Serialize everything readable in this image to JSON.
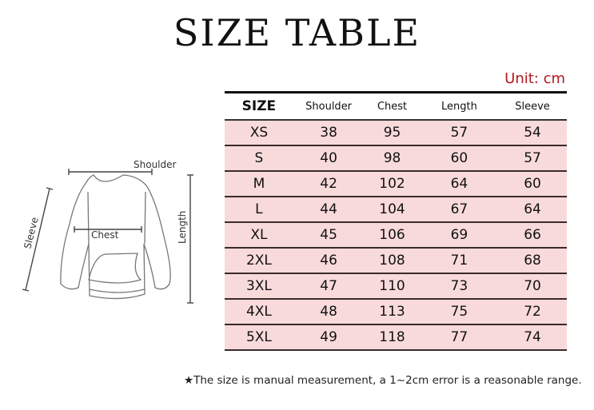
{
  "title": "SIZE TABLE",
  "unit": "Unit: cm",
  "table": {
    "headers": [
      "SIZE",
      "Shoulder",
      "Chest",
      "Length",
      "Sleeve"
    ],
    "rows": [
      [
        "XS",
        "38",
        "95",
        "57",
        "54"
      ],
      [
        "S",
        "40",
        "98",
        "60",
        "57"
      ],
      [
        "M",
        "42",
        "102",
        "64",
        "60"
      ],
      [
        "L",
        "44",
        "104",
        "67",
        "64"
      ],
      [
        "XL",
        "45",
        "106",
        "69",
        "66"
      ],
      [
        "2XL",
        "46",
        "108",
        "71",
        "68"
      ],
      [
        "3XL",
        "47",
        "110",
        "73",
        "70"
      ],
      [
        "4XL",
        "48",
        "113",
        "75",
        "72"
      ],
      [
        "5XL",
        "49",
        "118",
        "77",
        "74"
      ]
    ],
    "row_color": "#f9dadb"
  },
  "diagram": {
    "shoulder": "Shoulder",
    "chest": "Chest",
    "length": "Length",
    "sleeve": "Sleeve"
  },
  "note": "★The size is manual measurement, a 1~2cm error is a reasonable range."
}
